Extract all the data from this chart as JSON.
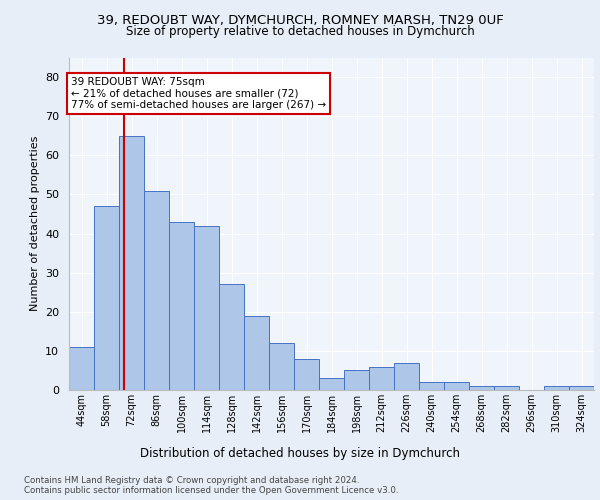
{
  "title_line1": "39, REDOUBT WAY, DYMCHURCH, ROMNEY MARSH, TN29 0UF",
  "title_line2": "Size of property relative to detached houses in Dymchurch",
  "xlabel": "Distribution of detached houses by size in Dymchurch",
  "ylabel": "Number of detached properties",
  "bins": [
    "44sqm",
    "58sqm",
    "72sqm",
    "86sqm",
    "100sqm",
    "114sqm",
    "128sqm",
    "142sqm",
    "156sqm",
    "170sqm",
    "184sqm",
    "198sqm",
    "212sqm",
    "226sqm",
    "240sqm",
    "254sqm",
    "268sqm",
    "282sqm",
    "296sqm",
    "310sqm",
    "324sqm"
  ],
  "bin_edges": [
    44,
    58,
    72,
    86,
    100,
    114,
    128,
    142,
    156,
    170,
    184,
    198,
    212,
    226,
    240,
    254,
    268,
    282,
    296,
    310,
    324
  ],
  "bar_values": [
    11,
    47,
    65,
    51,
    43,
    42,
    27,
    19,
    12,
    8,
    3,
    5,
    6,
    7,
    2,
    2,
    1,
    1,
    0,
    1,
    1
  ],
  "bar_color": "#aec6e8",
  "bar_edgecolor": "#4472c4",
  "redline_x": 75,
  "annotation_text": "39 REDOUBT WAY: 75sqm\n← 21% of detached houses are smaller (72)\n77% of semi-detached houses are larger (267) →",
  "annotation_box_edgecolor": "#cc0000",
  "annotation_box_facecolor": "#ffffff",
  "ylim": [
    0,
    85
  ],
  "yticks": [
    0,
    10,
    20,
    30,
    40,
    50,
    60,
    70,
    80
  ],
  "footer_text": "Contains HM Land Registry data © Crown copyright and database right 2024.\nContains public sector information licensed under the Open Government Licence v3.0.",
  "background_color": "#e8eef7",
  "plot_background": "#f0f4fb"
}
